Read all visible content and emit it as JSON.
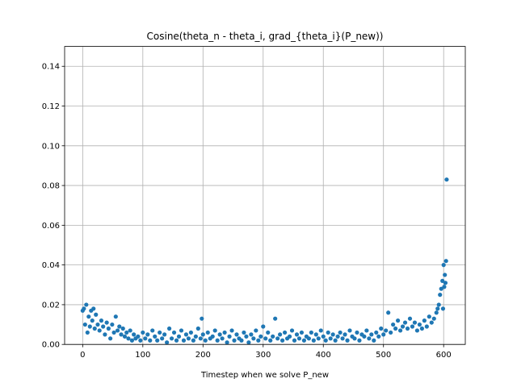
{
  "chart_data": {
    "type": "scatter",
    "title": "Cosine(theta_n - theta_i, grad_{theta_i}(P_new))",
    "xlabel": "Timestep when we solve P_new",
    "ylabel": "",
    "xlim": [
      -30,
      636
    ],
    "ylim": [
      0,
      0.15
    ],
    "xticks": [
      0,
      100,
      200,
      300,
      400,
      500,
      600
    ],
    "yticks": [
      0.0,
      0.02,
      0.04,
      0.06,
      0.08,
      0.1,
      0.12,
      0.14
    ],
    "xtick_labels": [
      "0",
      "100",
      "200",
      "300",
      "400",
      "500",
      "600"
    ],
    "ytick_labels": [
      "0.00",
      "0.02",
      "0.04",
      "0.06",
      "0.08",
      "0.10",
      "0.12",
      "0.14"
    ],
    "grid": true,
    "legend": "none",
    "marker_color": "#1f77b4",
    "series": [
      {
        "x": [
          0,
          2,
          4,
          6,
          8,
          10,
          12,
          14,
          16,
          18,
          20,
          22,
          25,
          28,
          31,
          34,
          37,
          40,
          43,
          46,
          49,
          52,
          55,
          58,
          61,
          64,
          67,
          70,
          73,
          76,
          79,
          82,
          85,
          88,
          92,
          96,
          100,
          104,
          108,
          112,
          116,
          120,
          124,
          128,
          132,
          136,
          140,
          144,
          148,
          152,
          156,
          160,
          164,
          168,
          172,
          176,
          180,
          184,
          188,
          192,
          196,
          198,
          200,
          204,
          208,
          212,
          216,
          220,
          224,
          228,
          232,
          236,
          240,
          244,
          248,
          252,
          256,
          260,
          264,
          268,
          272,
          276,
          280,
          284,
          288,
          292,
          296,
          300,
          304,
          308,
          312,
          316,
          320,
          324,
          328,
          332,
          336,
          340,
          344,
          348,
          352,
          356,
          360,
          364,
          368,
          372,
          376,
          380,
          384,
          388,
          392,
          396,
          400,
          404,
          408,
          412,
          416,
          420,
          424,
          428,
          432,
          436,
          440,
          444,
          448,
          452,
          456,
          460,
          464,
          468,
          472,
          476,
          480,
          484,
          488,
          492,
          496,
          500,
          504,
          508,
          512,
          516,
          520,
          524,
          528,
          532,
          536,
          540,
          544,
          548,
          552,
          556,
          560,
          564,
          568,
          572,
          576,
          580,
          584,
          588,
          590,
          592,
          594,
          596,
          598,
          599,
          600,
          601,
          602,
          603,
          604,
          605
        ],
        "y": [
          0.017,
          0.018,
          0.01,
          0.02,
          0.006,
          0.014,
          0.009,
          0.017,
          0.012,
          0.018,
          0.008,
          0.015,
          0.01,
          0.007,
          0.012,
          0.009,
          0.005,
          0.011,
          0.008,
          0.003,
          0.01,
          0.006,
          0.014,
          0.007,
          0.009,
          0.005,
          0.008,
          0.004,
          0.006,
          0.003,
          0.007,
          0.002,
          0.005,
          0.003,
          0.004,
          0.002,
          0.006,
          0.003,
          0.005,
          0.002,
          0.007,
          0.004,
          0.002,
          0.006,
          0.003,
          0.005,
          0.001,
          0.008,
          0.003,
          0.006,
          0.002,
          0.004,
          0.007,
          0.002,
          0.005,
          0.003,
          0.006,
          0.002,
          0.004,
          0.008,
          0.003,
          0.013,
          0.005,
          0.002,
          0.006,
          0.003,
          0.004,
          0.007,
          0.002,
          0.005,
          0.003,
          0.006,
          0.001,
          0.004,
          0.007,
          0.002,
          0.005,
          0.003,
          0.002,
          0.006,
          0.004,
          0.001,
          0.005,
          0.003,
          0.007,
          0.002,
          0.004,
          0.009,
          0.003,
          0.006,
          0.002,
          0.004,
          0.013,
          0.003,
          0.005,
          0.002,
          0.006,
          0.003,
          0.004,
          0.007,
          0.002,
          0.005,
          0.003,
          0.006,
          0.002,
          0.004,
          0.003,
          0.006,
          0.002,
          0.005,
          0.003,
          0.007,
          0.004,
          0.002,
          0.006,
          0.003,
          0.005,
          0.002,
          0.004,
          0.006,
          0.003,
          0.005,
          0.002,
          0.007,
          0.004,
          0.003,
          0.006,
          0.002,
          0.005,
          0.004,
          0.007,
          0.003,
          0.005,
          0.002,
          0.006,
          0.004,
          0.008,
          0.005,
          0.007,
          0.016,
          0.006,
          0.01,
          0.008,
          0.012,
          0.007,
          0.009,
          0.011,
          0.008,
          0.013,
          0.009,
          0.011,
          0.007,
          0.01,
          0.008,
          0.012,
          0.009,
          0.014,
          0.011,
          0.013,
          0.016,
          0.018,
          0.02,
          0.025,
          0.028,
          0.032,
          0.018,
          0.04,
          0.029,
          0.035,
          0.031,
          0.042,
          0.083
        ]
      }
    ]
  }
}
